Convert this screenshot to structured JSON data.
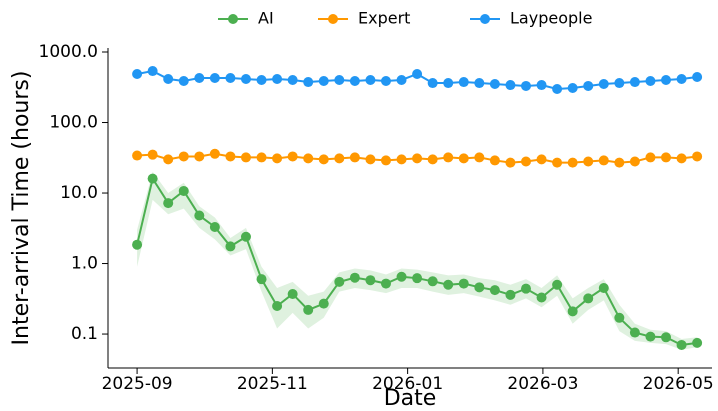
{
  "chart_data": {
    "type": "line",
    "xlabel": "Date",
    "ylabel": "Inter-arrival Time (hours)",
    "log_y": true,
    "legend": "top",
    "x": [
      0,
      0.23,
      0.46,
      0.69,
      0.92,
      1.15,
      1.38,
      1.61,
      1.84,
      2.07,
      2.3,
      2.53,
      2.76,
      2.99,
      3.22,
      3.45,
      3.68,
      3.91,
      4.14,
      4.37,
      4.6,
      4.83,
      5.06,
      5.29,
      5.52,
      5.75,
      5.98,
      6.21,
      6.44,
      6.67,
      6.9,
      7.13,
      7.36,
      7.59,
      7.82,
      8.05,
      8.28
    ],
    "xlim": [
      -0.43,
      8.5
    ],
    "xticks": [
      {
        "value": 0,
        "label": "2025-09"
      },
      {
        "value": 2,
        "label": "2025-11"
      },
      {
        "value": 4,
        "label": "2026-01"
      },
      {
        "value": 6,
        "label": "2026-03"
      },
      {
        "value": 8,
        "label": "2026-05"
      }
    ],
    "ylim": [
      0.033,
      1140
    ],
    "yticks": [
      0.1,
      {
        "value": 1,
        "label": "1.0"
      },
      {
        "value": 10,
        "label": "10.0"
      },
      {
        "value": 100,
        "label": "100.0"
      },
      {
        "value": 1000,
        "label": "1000.0"
      }
    ],
    "series": [
      {
        "name": "AI",
        "color": "#4caf50",
        "values": [
          1.85,
          16,
          7.2,
          10.7,
          4.8,
          3.3,
          1.75,
          2.4,
          0.6,
          0.25,
          0.37,
          0.22,
          0.27,
          0.55,
          0.63,
          0.58,
          0.52,
          0.65,
          0.62,
          0.56,
          0.5,
          0.52,
          0.46,
          0.42,
          0.36,
          0.44,
          0.33,
          0.5,
          0.21,
          0.32,
          0.45,
          0.17,
          0.105,
          0.092,
          0.09,
          0.07,
          0.075
        ],
        "lower": [
          0.9,
          8,
          5,
          6,
          3.2,
          2.2,
          1.3,
          1.6,
          0.4,
          0.12,
          0.2,
          0.12,
          0.17,
          0.4,
          0.45,
          0.42,
          0.38,
          0.45,
          0.45,
          0.4,
          0.36,
          0.38,
          0.34,
          0.3,
          0.26,
          0.32,
          0.24,
          0.35,
          0.14,
          0.22,
          0.3,
          0.11,
          0.08,
          0.075,
          0.072,
          0.06,
          0.065
        ],
        "upper": [
          3,
          20,
          10,
          14,
          6.5,
          4.5,
          2.3,
          3.2,
          0.9,
          0.45,
          0.55,
          0.35,
          0.4,
          0.75,
          0.85,
          0.8,
          0.7,
          0.85,
          0.82,
          0.75,
          0.68,
          0.7,
          0.62,
          0.58,
          0.5,
          0.6,
          0.45,
          0.68,
          0.32,
          0.45,
          0.6,
          0.26,
          0.14,
          0.115,
          0.11,
          0.085,
          0.09
        ]
      },
      {
        "name": "Expert",
        "color": "#ff9800",
        "values": [
          34,
          35,
          30,
          33,
          33,
          36,
          33,
          32,
          32,
          31,
          33,
          31,
          30,
          31,
          32,
          30,
          29,
          30,
          31,
          30,
          32,
          31,
          32,
          29,
          27,
          28,
          30,
          27,
          27,
          28,
          29,
          27,
          28,
          32,
          32,
          31,
          33
        ]
      },
      {
        "name": "Laypeople",
        "color": "#2196f3",
        "values": [
          488,
          537,
          414,
          388,
          428,
          428,
          428,
          414,
          401,
          414,
          401,
          375,
          388,
          401,
          388,
          401,
          388,
          401,
          488,
          363,
          363,
          375,
          363,
          352,
          340,
          330,
          340,
          299,
          309,
          330,
          352,
          363,
          375,
          388,
          401,
          414,
          442
        ]
      }
    ]
  }
}
